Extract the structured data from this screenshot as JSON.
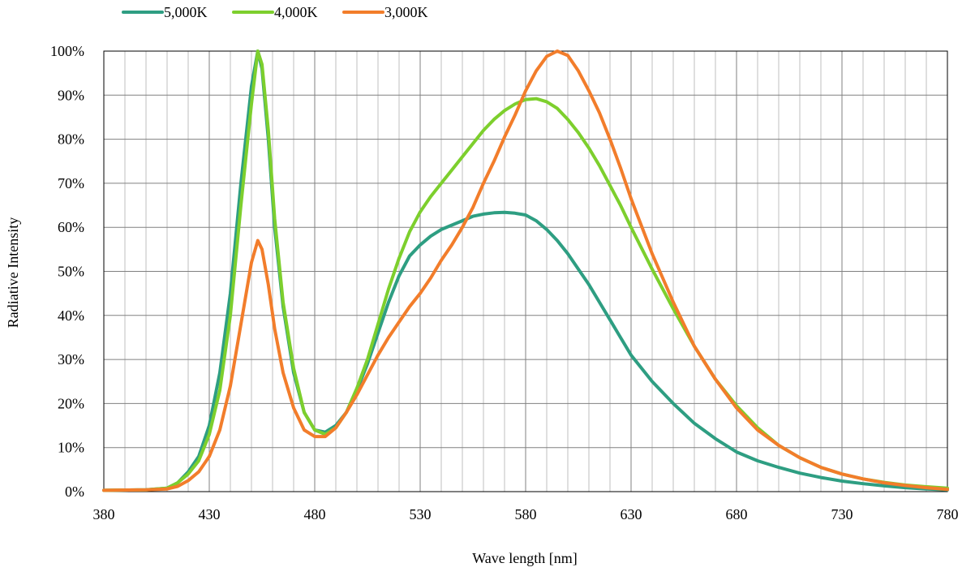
{
  "chart_data": {
    "type": "line",
    "title": "",
    "xlabel": "Wave length [nm]",
    "ylabel": "Radiative Intensity",
    "xlim": [
      380,
      780
    ],
    "ylim": [
      0,
      100
    ],
    "x_ticks": [
      380,
      430,
      480,
      530,
      580,
      630,
      680,
      730,
      780
    ],
    "x_tick_labels": [
      "380",
      "430",
      "480",
      "530",
      "580",
      "630",
      "680",
      "730",
      "780"
    ],
    "y_ticks": [
      0,
      10,
      20,
      30,
      40,
      50,
      60,
      70,
      80,
      90,
      100
    ],
    "y_tick_labels": [
      "0%",
      "10%",
      "20%",
      "30%",
      "40%",
      "50%",
      "60%",
      "70%",
      "80%",
      "90%",
      "100%"
    ],
    "grid": true,
    "minor_grid_step": 10,
    "legend_position": "top-left",
    "series": [
      {
        "name": "5,000K",
        "color": "#2e9e82",
        "x": [
          380,
          400,
          410,
          415,
          420,
          425,
          430,
          435,
          440,
          445,
          450,
          453,
          455,
          458,
          461,
          465,
          470,
          475,
          480,
          485,
          490,
          495,
          500,
          505,
          510,
          515,
          520,
          525,
          530,
          535,
          540,
          545,
          550,
          555,
          560,
          565,
          570,
          575,
          580,
          585,
          590,
          595,
          600,
          605,
          610,
          615,
          620,
          625,
          630,
          640,
          650,
          660,
          670,
          680,
          690,
          700,
          710,
          720,
          730,
          740,
          750,
          760,
          770,
          780
        ],
        "y": [
          0.3,
          0.4,
          0.8,
          2,
          4.5,
          8,
          15,
          27,
          45,
          70,
          92,
          100,
          96,
          80,
          60,
          42,
          27,
          18,
          14,
          13.5,
          15,
          18,
          23,
          29,
          36,
          43,
          49,
          53.5,
          56,
          58,
          59.5,
          60.5,
          61.5,
          62.5,
          63,
          63.3,
          63.4,
          63.2,
          62.8,
          61.5,
          59.5,
          57,
          54,
          50.5,
          47,
          43,
          39,
          35,
          31,
          25,
          20,
          15.5,
          12,
          9,
          7,
          5.5,
          4.2,
          3.2,
          2.4,
          1.8,
          1.3,
          0.9,
          0.6,
          0.4
        ]
      },
      {
        "name": "4,000K",
        "color": "#7dcf2d",
        "x": [
          380,
          400,
          410,
          415,
          420,
          425,
          430,
          435,
          440,
          445,
          450,
          453,
          455,
          458,
          461,
          465,
          470,
          475,
          480,
          485,
          490,
          495,
          500,
          505,
          510,
          515,
          520,
          525,
          530,
          535,
          540,
          545,
          550,
          555,
          560,
          565,
          570,
          575,
          580,
          585,
          590,
          595,
          600,
          605,
          610,
          615,
          620,
          625,
          630,
          640,
          650,
          660,
          670,
          680,
          690,
          700,
          710,
          720,
          730,
          740,
          750,
          760,
          770,
          780
        ],
        "y": [
          0.3,
          0.4,
          0.8,
          2,
          4,
          7,
          13,
          23,
          40,
          65,
          88,
          100,
          97,
          82,
          62,
          43,
          28,
          18,
          14,
          13,
          14.5,
          18,
          23.5,
          30,
          38,
          46,
          53,
          59,
          63.5,
          67,
          70,
          73,
          76,
          79,
          82,
          84.5,
          86.5,
          88,
          89,
          89.2,
          88.5,
          87,
          84.5,
          81.5,
          78,
          74,
          69.5,
          65,
          60,
          50.5,
          41.5,
          33,
          25.5,
          19.5,
          14.5,
          10.5,
          7.7,
          5.5,
          4,
          2.9,
          2.1,
          1.5,
          1.1,
          0.8
        ]
      },
      {
        "name": "3,000K",
        "color": "#f27d2b",
        "x": [
          380,
          400,
          410,
          415,
          420,
          425,
          430,
          435,
          440,
          445,
          450,
          453,
          455,
          458,
          461,
          465,
          470,
          475,
          480,
          485,
          490,
          495,
          500,
          505,
          510,
          515,
          520,
          525,
          530,
          535,
          540,
          545,
          550,
          555,
          560,
          565,
          570,
          575,
          580,
          585,
          590,
          595,
          600,
          605,
          610,
          615,
          620,
          625,
          630,
          640,
          650,
          660,
          670,
          680,
          690,
          700,
          710,
          720,
          730,
          740,
          750,
          760,
          770,
          780
        ],
        "y": [
          0.3,
          0.4,
          0.6,
          1.2,
          2.5,
          4.5,
          8,
          14,
          24,
          38,
          52,
          57,
          55,
          47,
          37,
          27,
          19,
          14,
          12.5,
          12.5,
          14.5,
          18,
          22,
          26.5,
          31,
          35,
          38.5,
          42,
          45,
          48.5,
          52.5,
          56,
          60,
          64.5,
          70,
          75,
          80.5,
          85.5,
          91,
          95.5,
          98.8,
          100,
          99,
          95.5,
          91,
          86,
          80,
          73.5,
          66.5,
          54,
          43,
          33,
          25.5,
          19,
          14,
          10.5,
          7.7,
          5.5,
          4,
          2.9,
          2,
          1.4,
          0.9,
          0.5
        ]
      }
    ]
  }
}
